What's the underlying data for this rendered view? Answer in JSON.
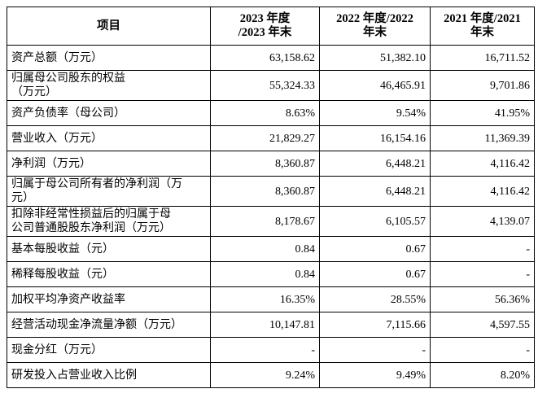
{
  "table": {
    "header": [
      "项目",
      "2023 年度\n/2023 年末",
      "2022 年度/2022\n年末",
      "2021 年度/2021\n年末"
    ],
    "rows": [
      [
        "资产总额（万元）",
        "63,158.62",
        "51,382.10",
        "16,711.52"
      ],
      [
        "归属母公司股东的权益\n（万元）",
        "55,324.33",
        "46,465.91",
        "9,701.86"
      ],
      [
        "资产负债率（母公司）",
        "8.63%",
        "9.54%",
        "41.95%"
      ],
      [
        "营业收入（万元）",
        "21,829.27",
        "16,154.16",
        "11,369.39"
      ],
      [
        "净利润（万元）",
        "8,360.87",
        "6,448.21",
        "4,116.42"
      ],
      [
        "归属于母公司所有者的净利润（万\n元）",
        "8,360.87",
        "6,448.21",
        "4,116.42"
      ],
      [
        "扣除非经常性损益后的归属于母\n公司普通股股东净利润（万元）",
        "8,178.67",
        "6,105.57",
        "4,139.07"
      ],
      [
        "基本每股收益（元）",
        "0.84",
        "0.67",
        "-"
      ],
      [
        "稀释每股收益（元）",
        "0.84",
        "0.67",
        "-"
      ],
      [
        "加权平均净资产收益率",
        "16.35%",
        "28.55%",
        "56.36%"
      ],
      [
        "经营活动现金净流量净额（万元）",
        "10,147.81",
        "7,115.66",
        "4,597.55"
      ],
      [
        "现金分红（万元）",
        "-",
        "-",
        "-"
      ],
      [
        "研发投入占营业收入比例",
        "9.24%",
        "9.49%",
        "8.20%"
      ]
    ]
  }
}
